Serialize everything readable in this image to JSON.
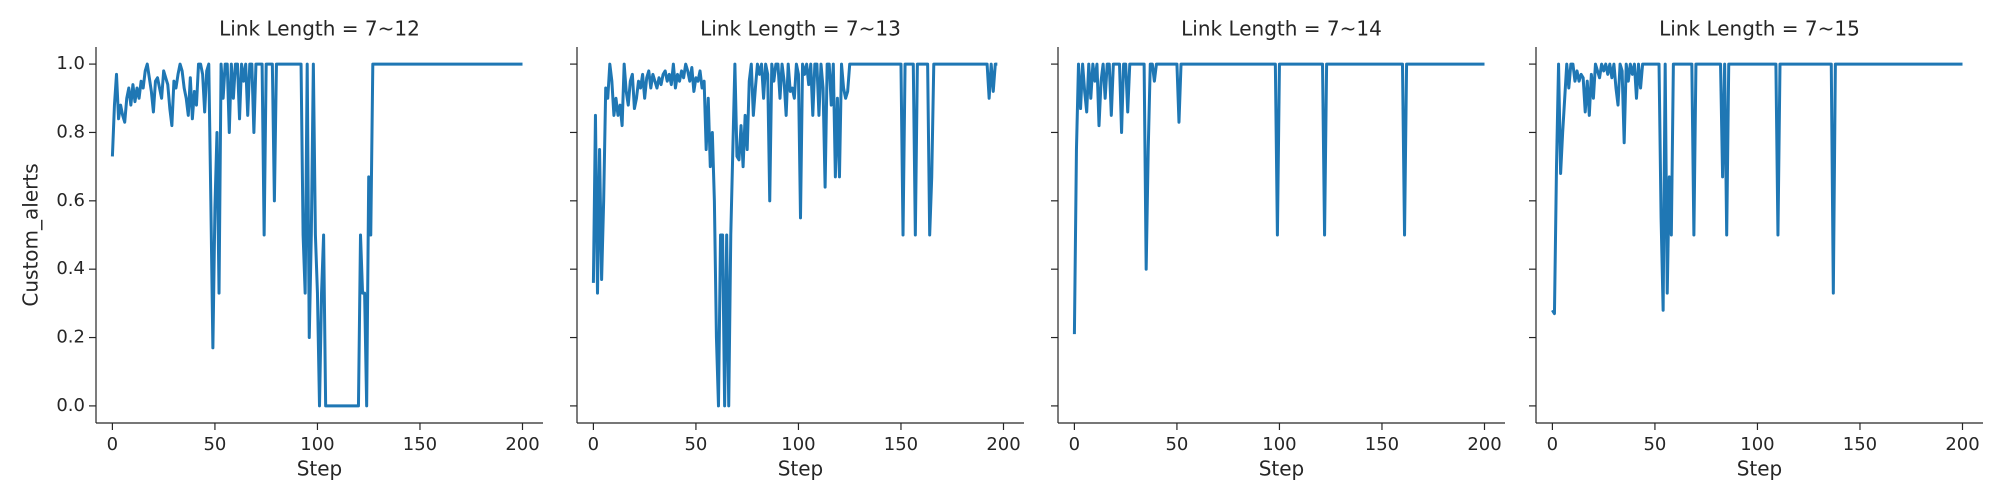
{
  "chart_data": [
    {
      "type": "line",
      "title": "Link Length = 7~12",
      "xlabel": "Step",
      "ylabel": "Custom_alerts",
      "xlim": [
        -8,
        210
      ],
      "ylim": [
        -0.05,
        1.05
      ],
      "xticks": [
        0,
        50,
        100,
        150,
        200
      ],
      "yticks": [
        {
          "value": 0,
          "label": "0.0"
        },
        {
          "value": 0.2,
          "label": "0.2"
        },
        {
          "value": 0.4,
          "label": "0.4"
        },
        {
          "value": 0.6,
          "label": "0.6"
        },
        {
          "value": 0.8,
          "label": "0.8"
        },
        {
          "value": 1,
          "label": "1.0"
        }
      ],
      "x": [
        0,
        1,
        2,
        3,
        4,
        5,
        6,
        7,
        8,
        9,
        10,
        11,
        12,
        13,
        14,
        15,
        16,
        17,
        18,
        19,
        20,
        21,
        22,
        23,
        24,
        25,
        26,
        27,
        28,
        29,
        30,
        31,
        32,
        33,
        34,
        35,
        36,
        37,
        38,
        39,
        40,
        41,
        42,
        43,
        44,
        45,
        46,
        47,
        48,
        49,
        50,
        51,
        52,
        53,
        54,
        55,
        56,
        57,
        58,
        59,
        60,
        61,
        62,
        63,
        64,
        65,
        66,
        67,
        68,
        69,
        70,
        71,
        72,
        73,
        74,
        75,
        76,
        77,
        78,
        79,
        80,
        92,
        93,
        94,
        95,
        96,
        97,
        98,
        99,
        100,
        101,
        102,
        103,
        104,
        120,
        121,
        122,
        123,
        124,
        125,
        126,
        127,
        200
      ],
      "series": [
        {
          "color": "#1f77b4",
          "values": [
            0.73,
            0.88,
            0.97,
            0.84,
            0.88,
            0.85,
            0.83,
            0.9,
            0.93,
            0.88,
            0.94,
            0.89,
            0.93,
            0.9,
            0.95,
            0.93,
            0.98,
            1,
            0.96,
            0.92,
            0.86,
            0.95,
            0.96,
            0.93,
            0.9,
            0.98,
            0.96,
            0.94,
            0.87,
            0.82,
            0.95,
            0.93,
            0.97,
            1,
            0.98,
            0.93,
            0.9,
            0.85,
            0.96,
            0.84,
            0.92,
            0.88,
            1,
            1,
            0.97,
            0.86,
            0.98,
            1,
            0.6,
            0.17,
            0.58,
            0.8,
            0.33,
            1,
            0.9,
            1,
            1,
            0.8,
            1,
            0.9,
            1,
            1,
            0.84,
            1,
            0.95,
            1,
            0.85,
            1,
            1,
            0.8,
            1,
            1,
            1,
            1,
            0.5,
            1,
            1,
            1,
            1,
            0.6,
            1,
            1,
            0.5,
            0.33,
            1,
            0.2,
            0.5,
            1,
            0.5,
            0.33,
            0,
            0.33,
            0.5,
            0,
            0,
            0.5,
            0.33,
            0.33,
            0,
            0.67,
            0.5,
            1,
            1
          ]
        }
      ]
    },
    {
      "type": "line",
      "title": "Link Length = 7~13",
      "xlabel": "Step",
      "xlim": [
        -8,
        210
      ],
      "ylim": [
        -0.05,
        1.05
      ],
      "xticks": [
        0,
        50,
        100,
        150,
        200
      ],
      "yticks": [
        0,
        0.2,
        0.4,
        0.6,
        0.8,
        1
      ],
      "x": [
        0,
        1,
        2,
        3,
        4,
        5,
        6,
        7,
        8,
        9,
        10,
        11,
        12,
        13,
        14,
        15,
        16,
        17,
        18,
        19,
        20,
        21,
        22,
        23,
        24,
        25,
        26,
        27,
        28,
        29,
        30,
        31,
        32,
        33,
        34,
        35,
        36,
        37,
        38,
        39,
        40,
        41,
        42,
        43,
        44,
        45,
        46,
        47,
        48,
        49,
        50,
        51,
        52,
        53,
        54,
        55,
        56,
        57,
        58,
        59,
        60,
        61,
        62,
        63,
        64,
        65,
        66,
        67,
        68,
        69,
        70,
        71,
        72,
        73,
        74,
        75,
        76,
        77,
        78,
        79,
        80,
        81,
        82,
        83,
        84,
        85,
        86,
        87,
        88,
        89,
        90,
        91,
        92,
        93,
        94,
        95,
        96,
        97,
        98,
        99,
        100,
        101,
        102,
        103,
        104,
        105,
        106,
        107,
        108,
        109,
        110,
        111,
        112,
        113,
        114,
        115,
        116,
        117,
        118,
        119,
        120,
        121,
        122,
        123,
        124,
        125,
        150,
        151,
        152,
        156,
        157,
        158,
        163,
        164,
        165,
        166,
        192,
        193,
        194,
        195,
        196,
        197
      ],
      "series": [
        {
          "color": "#1f77b4",
          "values": [
            0.36,
            0.85,
            0.33,
            0.75,
            0.37,
            0.6,
            0.93,
            0.9,
            1,
            0.95,
            0.85,
            0.9,
            0.85,
            0.88,
            0.82,
            1,
            0.92,
            0.88,
            0.95,
            0.97,
            0.87,
            0.9,
            0.95,
            0.93,
            0.97,
            0.9,
            0.96,
            0.98,
            0.93,
            0.97,
            0.95,
            0.93,
            0.96,
            0.94,
            0.97,
            0.98,
            0.95,
            0.97,
            0.94,
            1,
            0.93,
            0.97,
            0.95,
            0.98,
            0.96,
            1,
            0.98,
            0.95,
            0.99,
            0.92,
            0.96,
            0.95,
            0.98,
            0.93,
            0.95,
            0.75,
            0.9,
            0.7,
            0.8,
            0.6,
            0.2,
            0,
            0.5,
            0.5,
            0,
            0.5,
            0,
            0.5,
            0.75,
            1,
            0.73,
            0.72,
            0.82,
            0.7,
            0.85,
            0.75,
            0.95,
            1,
            0.85,
            0.93,
            1,
            0.97,
            1,
            0.9,
            1,
            0.97,
            0.6,
            1,
            0.95,
            1,
            1,
            0.9,
            1,
            0.95,
            0.85,
            1,
            0.92,
            0.93,
            0.9,
            1,
            0.97,
            0.55,
            1,
            0.97,
            1,
            0.94,
            1,
            0.85,
            1,
            1,
            0.85,
            1,
            0.93,
            0.64,
            1,
            1,
            0.88,
            1,
            0.67,
            0.9,
            0.67,
            1,
            0.93,
            0.9,
            0.92,
            1,
            1,
            0.5,
            1,
            1,
            0.5,
            1,
            1,
            0.5,
            0.67,
            1,
            1,
            0.9,
            1,
            0.92,
            1,
            1
          ]
        }
      ]
    },
    {
      "type": "line",
      "title": "Link Length = 7~14",
      "xlabel": "Step",
      "xlim": [
        -8,
        210
      ],
      "ylim": [
        -0.05,
        1.05
      ],
      "xticks": [
        0,
        50,
        100,
        150,
        200
      ],
      "yticks": [
        0,
        0.2,
        0.4,
        0.6,
        0.8,
        1
      ],
      "x": [
        0,
        1,
        2,
        3,
        4,
        5,
        6,
        7,
        8,
        9,
        10,
        11,
        12,
        13,
        14,
        15,
        16,
        17,
        18,
        19,
        20,
        22,
        23,
        24,
        25,
        26,
        27,
        34,
        35,
        36,
        37,
        38,
        39,
        40,
        50,
        51,
        52,
        98,
        99,
        100,
        121,
        122,
        123,
        160,
        161,
        162,
        200
      ],
      "series": [
        {
          "color": "#1f77b4",
          "values": [
            0.21,
            0.75,
            1,
            0.87,
            1,
            0.92,
            0.86,
            1,
            0.9,
            1,
            0.95,
            1,
            0.82,
            0.95,
            1,
            0.9,
            1,
            1,
            0.85,
            1,
            1,
            1,
            0.8,
            1,
            1,
            0.86,
            1,
            1,
            0.4,
            0.75,
            1,
            1,
            0.95,
            1,
            1,
            0.83,
            1,
            1,
            0.5,
            1,
            1,
            0.5,
            1,
            1,
            0.5,
            1,
            1
          ]
        }
      ]
    },
    {
      "type": "line",
      "title": "Link Length = 7~15",
      "xlabel": "Step",
      "xlim": [
        -8,
        210
      ],
      "ylim": [
        -0.05,
        1.05
      ],
      "xticks": [
        0,
        50,
        100,
        150,
        200
      ],
      "yticks": [
        0,
        0.2,
        0.4,
        0.6,
        0.8,
        1
      ],
      "x": [
        0,
        1,
        2,
        3,
        4,
        5,
        6,
        7,
        8,
        9,
        10,
        11,
        12,
        13,
        14,
        15,
        16,
        17,
        18,
        19,
        20,
        21,
        22,
        23,
        24,
        25,
        26,
        27,
        28,
        29,
        30,
        31,
        32,
        33,
        34,
        35,
        36,
        37,
        38,
        39,
        40,
        41,
        42,
        43,
        44,
        52,
        53,
        54,
        55,
        56,
        57,
        58,
        59,
        68,
        69,
        70,
        82,
        83,
        84,
        85,
        86,
        109,
        110,
        111,
        136,
        137,
        138,
        200
      ],
      "series": [
        {
          "color": "#1f77b4",
          "values": [
            0.28,
            0.27,
            0.7,
            1,
            0.68,
            0.8,
            0.9,
            1,
            0.93,
            1,
            1,
            0.95,
            0.98,
            0.95,
            0.97,
            0.96,
            0.86,
            0.95,
            0.85,
            0.97,
            0.9,
            1,
            0.98,
            0.96,
            1,
            0.98,
            1,
            0.97,
            1,
            0.96,
            1,
            0.93,
            0.88,
            1,
            0.98,
            0.77,
            1,
            0.95,
            1,
            0.97,
            1,
            0.9,
            1,
            0.93,
            1,
            1,
            0.55,
            0.28,
            1,
            0.33,
            0.67,
            0.5,
            1,
            1,
            0.5,
            1,
            1,
            0.67,
            1,
            0.5,
            1,
            1,
            0.5,
            1,
            1,
            0.33,
            1,
            1
          ]
        }
      ]
    }
  ]
}
